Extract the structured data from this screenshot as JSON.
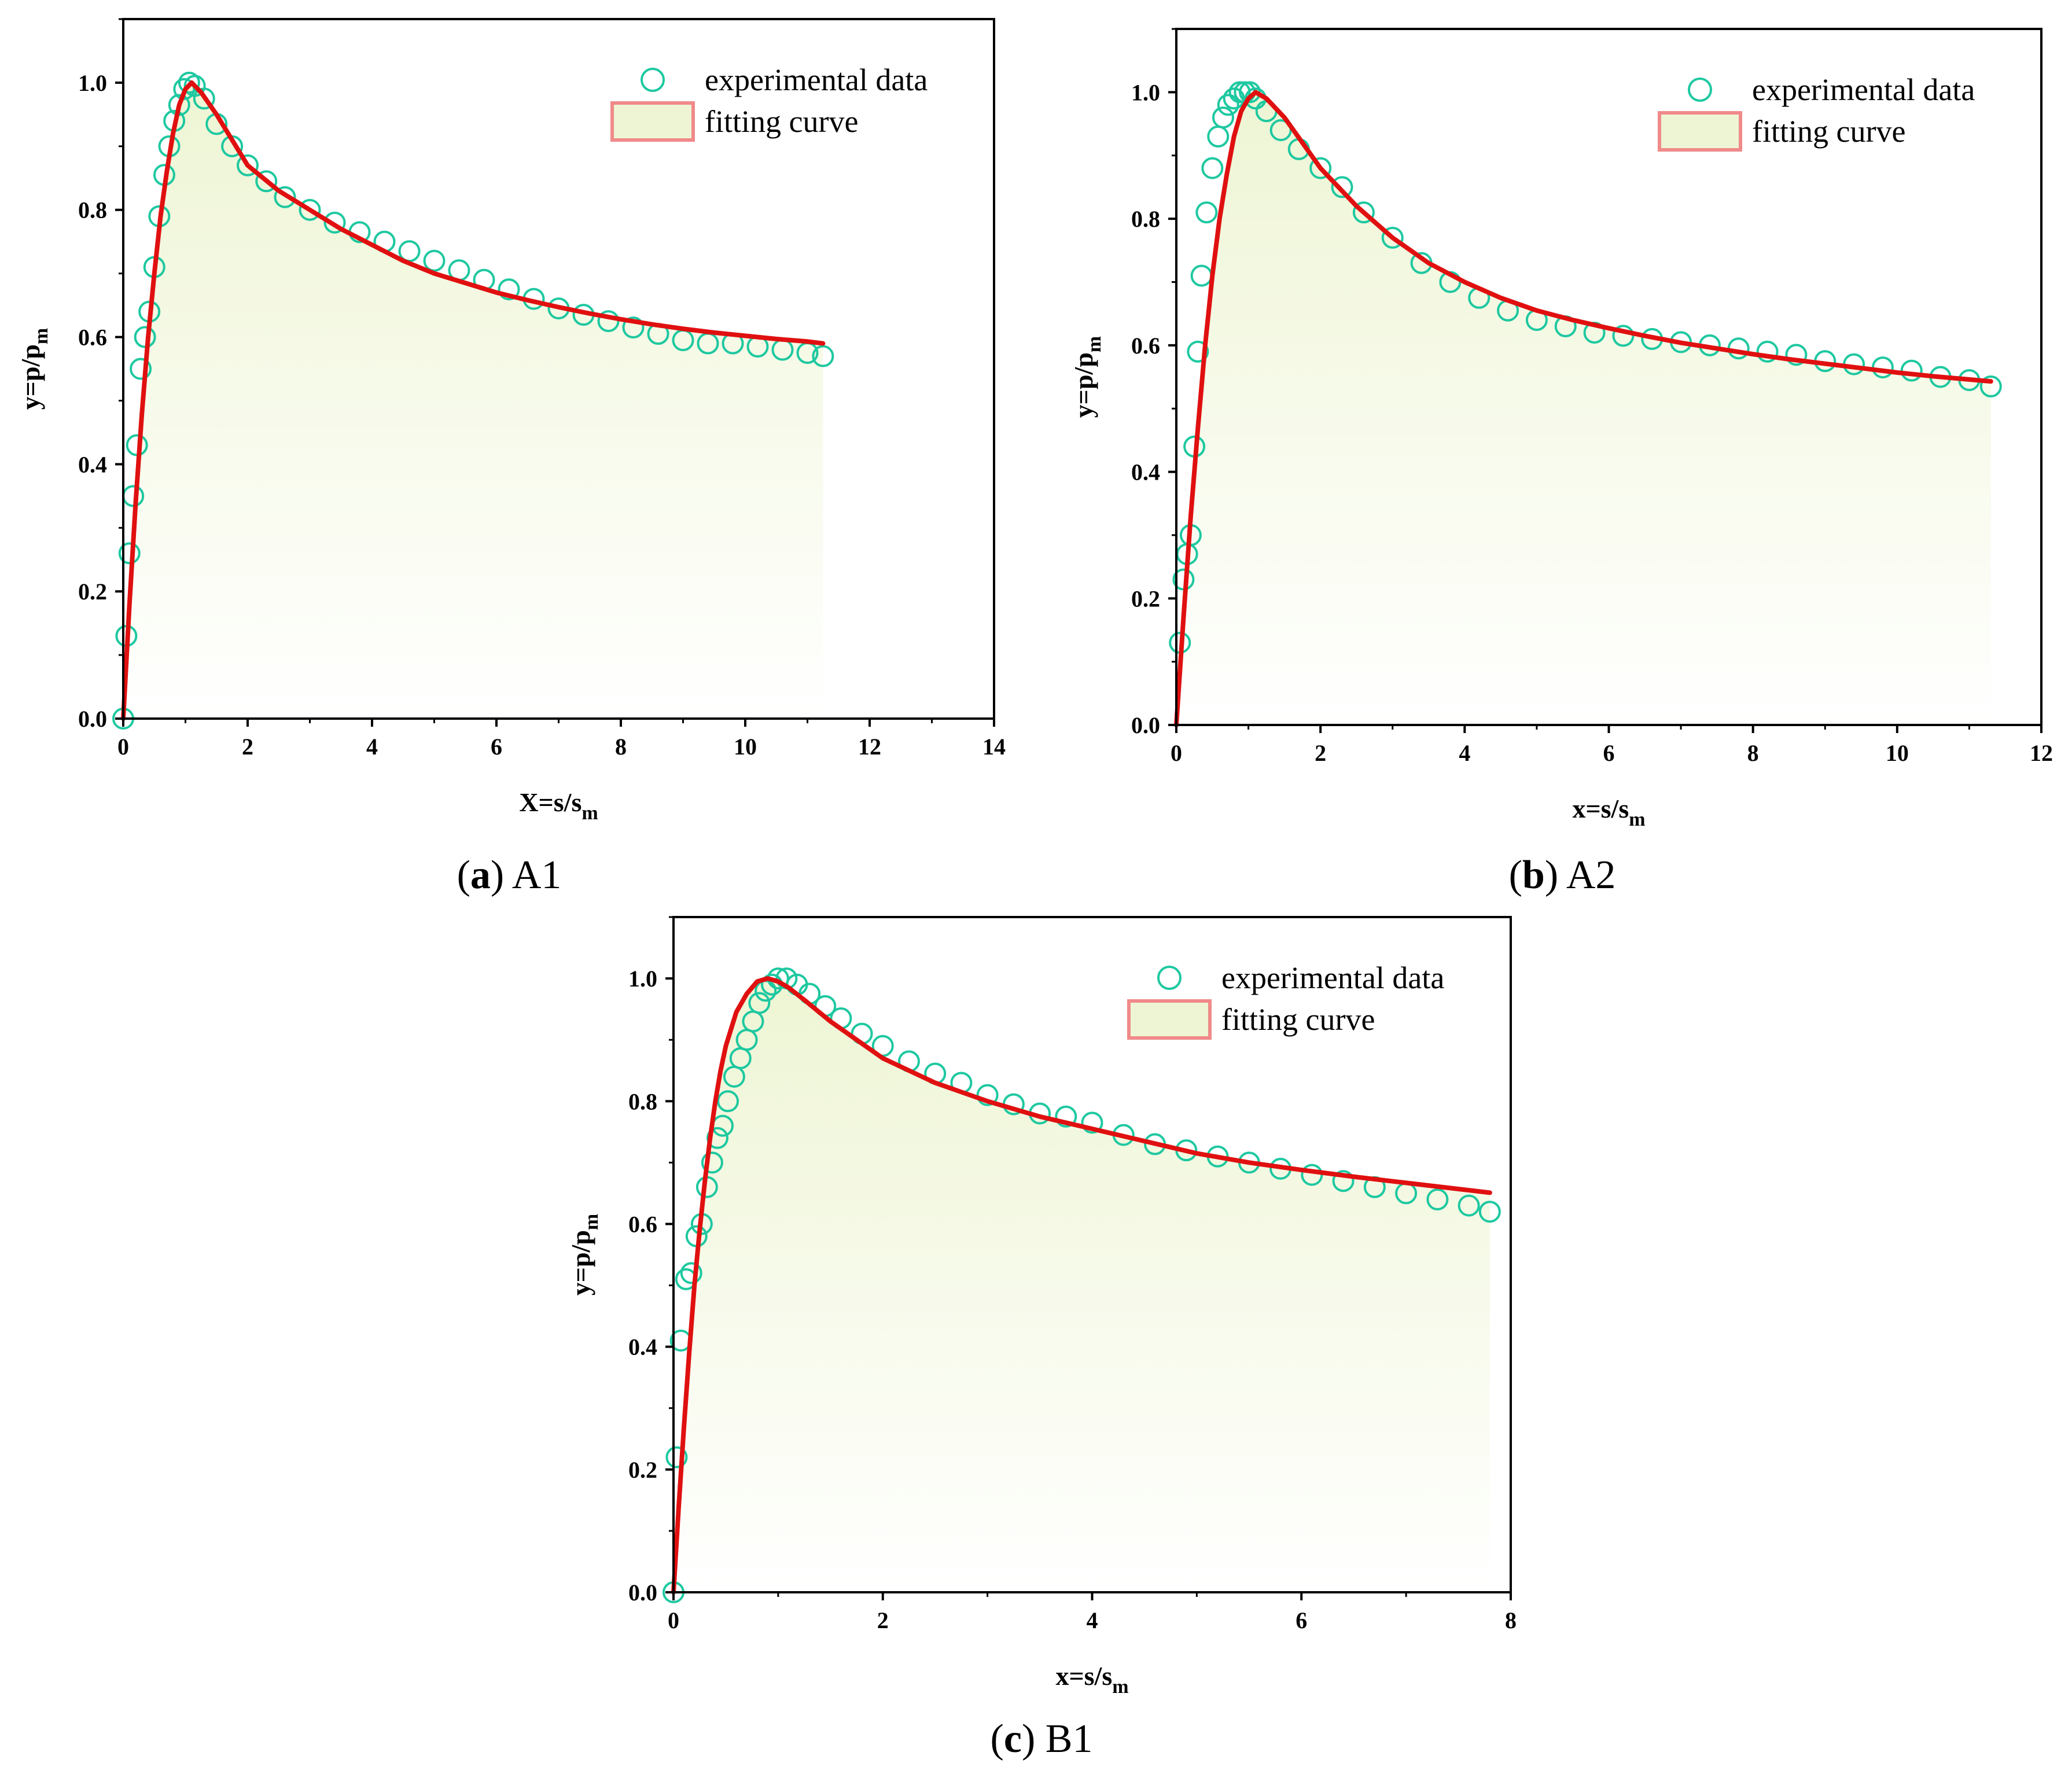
{
  "colors": {
    "marker": "#1ec8a0",
    "fit": "#e01010",
    "fill_top": "#eef5d4",
    "fill_bottom": "#ffffff",
    "legend_box": "#f08a8a",
    "axis": "#000000"
  },
  "chart_data": [
    {
      "id": "a",
      "type": "scatter",
      "caption_letter": "a",
      "caption_name": "A1",
      "xlabel_main": "X=s/s",
      "xlabel_sub": "m",
      "ylabel_main": "y=p/p",
      "ylabel_sub": "m",
      "xlim": [
        0,
        14
      ],
      "ylim": [
        0,
        1.1
      ],
      "xticks": [
        0,
        2,
        4,
        6,
        8,
        10,
        12,
        14
      ],
      "yticks": [
        0.0,
        0.2,
        0.4,
        0.6,
        0.8,
        1.0
      ],
      "xtick_labels": [
        "0",
        "2",
        "4",
        "6",
        "8",
        "10",
        "12",
        "14"
      ],
      "ytick_labels": [
        "0.0",
        "0.2",
        "0.4",
        "0.6",
        "0.8",
        "1.0"
      ],
      "legend": [
        "experimental data",
        "fitting curve"
      ],
      "legend_position": "top-right",
      "series": [
        {
          "name": "experimental data",
          "x": [
            0,
            0.05,
            0.1,
            0.16,
            0.22,
            0.28,
            0.35,
            0.42,
            0.5,
            0.58,
            0.66,
            0.74,
            0.82,
            0.9,
            0.98,
            1.06,
            1.15,
            1.3,
            1.5,
            1.75,
            2.0,
            2.3,
            2.6,
            3.0,
            3.4,
            3.8,
            4.2,
            4.6,
            5.0,
            5.4,
            5.8,
            6.2,
            6.6,
            7.0,
            7.4,
            7.8,
            8.2,
            8.6,
            9.0,
            9.4,
            9.8,
            10.2,
            10.6,
            11.0,
            11.25
          ],
          "y": [
            0.0,
            0.13,
            0.26,
            0.35,
            0.43,
            0.55,
            0.6,
            0.64,
            0.71,
            0.79,
            0.855,
            0.9,
            0.94,
            0.965,
            0.99,
            1.0,
            0.995,
            0.975,
            0.935,
            0.9,
            0.87,
            0.845,
            0.82,
            0.8,
            0.78,
            0.765,
            0.75,
            0.735,
            0.72,
            0.705,
            0.69,
            0.675,
            0.66,
            0.645,
            0.635,
            0.625,
            0.615,
            0.605,
            0.595,
            0.59,
            0.59,
            0.585,
            0.58,
            0.575,
            0.57
          ]
        },
        {
          "name": "fitting curve",
          "x": [
            0,
            0.1,
            0.2,
            0.3,
            0.4,
            0.5,
            0.6,
            0.7,
            0.8,
            0.9,
            1.0,
            1.1,
            1.25,
            1.5,
            1.75,
            2.0,
            2.5,
            3.0,
            3.5,
            4.0,
            4.5,
            5.0,
            5.5,
            6.0,
            6.5,
            7.0,
            7.5,
            8.0,
            8.5,
            9.0,
            9.5,
            10.0,
            10.5,
            11.0,
            11.25
          ],
          "y": [
            0.0,
            0.18,
            0.34,
            0.48,
            0.6,
            0.7,
            0.79,
            0.86,
            0.92,
            0.965,
            0.99,
            1.0,
            0.985,
            0.95,
            0.91,
            0.87,
            0.83,
            0.8,
            0.77,
            0.745,
            0.72,
            0.7,
            0.685,
            0.67,
            0.658,
            0.647,
            0.637,
            0.628,
            0.62,
            0.613,
            0.607,
            0.602,
            0.597,
            0.593,
            0.59
          ]
        }
      ]
    },
    {
      "id": "b",
      "type": "scatter",
      "caption_letter": "b",
      "caption_name": "A2",
      "xlabel_main": "x=s/s",
      "xlabel_sub": "m",
      "ylabel_main": "y=p/p",
      "ylabel_sub": "m",
      "xlim": [
        0,
        12
      ],
      "ylim": [
        0,
        1.1
      ],
      "xticks": [
        0,
        2,
        4,
        6,
        8,
        10,
        12
      ],
      "yticks": [
        0.0,
        0.2,
        0.4,
        0.6,
        0.8,
        1.0
      ],
      "xtick_labels": [
        "0",
        "2",
        "4",
        "6",
        "8",
        "10",
        "12"
      ],
      "ytick_labels": [
        "0.0",
        "0.2",
        "0.4",
        "0.6",
        "0.8",
        "1.0"
      ],
      "legend": [
        "experimental data",
        "fitting curve"
      ],
      "legend_position": "top-right",
      "series": [
        {
          "name": "experimental data",
          "x": [
            0.05,
            0.1,
            0.15,
            0.2,
            0.25,
            0.3,
            0.35,
            0.42,
            0.5,
            0.58,
            0.65,
            0.72,
            0.8,
            0.88,
            0.95,
            1.02,
            1.1,
            1.25,
            1.45,
            1.7,
            2.0,
            2.3,
            2.6,
            3.0,
            3.4,
            3.8,
            4.2,
            4.6,
            5.0,
            5.4,
            5.8,
            6.2,
            6.6,
            7.0,
            7.4,
            7.8,
            8.2,
            8.6,
            9.0,
            9.4,
            9.8,
            10.2,
            10.6,
            11.0,
            11.3
          ],
          "y": [
            0.13,
            0.23,
            0.27,
            0.3,
            0.44,
            0.59,
            0.71,
            0.81,
            0.88,
            0.93,
            0.96,
            0.98,
            0.99,
            1.0,
            1.0,
            1.0,
            0.99,
            0.97,
            0.94,
            0.91,
            0.88,
            0.85,
            0.81,
            0.77,
            0.73,
            0.7,
            0.675,
            0.655,
            0.64,
            0.63,
            0.62,
            0.615,
            0.61,
            0.605,
            0.6,
            0.595,
            0.59,
            0.585,
            0.575,
            0.57,
            0.565,
            0.56,
            0.55,
            0.545,
            0.535
          ]
        },
        {
          "name": "fitting curve",
          "x": [
            0,
            0.1,
            0.2,
            0.3,
            0.4,
            0.5,
            0.6,
            0.7,
            0.8,
            0.9,
            1.0,
            1.1,
            1.25,
            1.5,
            1.75,
            2.0,
            2.5,
            3.0,
            3.5,
            4.0,
            4.5,
            5.0,
            5.5,
            6.0,
            6.5,
            7.0,
            7.5,
            8.0,
            8.5,
            9.0,
            9.5,
            10.0,
            10.5,
            11.0,
            11.3
          ],
          "y": [
            0.0,
            0.17,
            0.33,
            0.47,
            0.6,
            0.71,
            0.8,
            0.87,
            0.93,
            0.97,
            0.99,
            1.0,
            0.99,
            0.96,
            0.92,
            0.88,
            0.82,
            0.77,
            0.73,
            0.7,
            0.675,
            0.655,
            0.64,
            0.627,
            0.615,
            0.604,
            0.595,
            0.586,
            0.578,
            0.571,
            0.564,
            0.557,
            0.551,
            0.546,
            0.543
          ]
        }
      ]
    },
    {
      "id": "c",
      "type": "scatter",
      "caption_letter": "c",
      "caption_name": "B1",
      "xlabel_main": "x=s/s",
      "xlabel_sub": "m",
      "ylabel_main": "y=p/p",
      "ylabel_sub": "m",
      "xlim": [
        0,
        8
      ],
      "ylim": [
        0,
        1.1
      ],
      "xticks": [
        0,
        2,
        4,
        6,
        8
      ],
      "yticks": [
        0.0,
        0.2,
        0.4,
        0.6,
        0.8,
        1.0
      ],
      "xtick_labels": [
        "0",
        "2",
        "4",
        "6",
        "8"
      ],
      "ytick_labels": [
        "0.0",
        "0.2",
        "0.4",
        "0.6",
        "0.8",
        "1.0"
      ],
      "legend": [
        "experimental data",
        "fitting curve"
      ],
      "legend_position": "top-right",
      "series": [
        {
          "name": "experimental data",
          "x": [
            0,
            0.03,
            0.07,
            0.12,
            0.17,
            0.22,
            0.27,
            0.32,
            0.37,
            0.42,
            0.47,
            0.52,
            0.58,
            0.64,
            0.7,
            0.76,
            0.82,
            0.88,
            0.94,
            1.0,
            1.08,
            1.18,
            1.3,
            1.45,
            1.6,
            1.8,
            2.0,
            2.25,
            2.5,
            2.75,
            3.0,
            3.25,
            3.5,
            3.75,
            4.0,
            4.3,
            4.6,
            4.9,
            5.2,
            5.5,
            5.8,
            6.1,
            6.4,
            6.7,
            7.0,
            7.3,
            7.6,
            7.8
          ],
          "y": [
            0.0,
            0.22,
            0.41,
            0.51,
            0.52,
            0.58,
            0.6,
            0.66,
            0.7,
            0.74,
            0.76,
            0.8,
            0.84,
            0.87,
            0.9,
            0.93,
            0.96,
            0.98,
            0.99,
            1.0,
            1.0,
            0.99,
            0.975,
            0.955,
            0.935,
            0.91,
            0.89,
            0.865,
            0.845,
            0.83,
            0.81,
            0.795,
            0.78,
            0.775,
            0.765,
            0.745,
            0.73,
            0.72,
            0.71,
            0.7,
            0.69,
            0.68,
            0.67,
            0.66,
            0.65,
            0.64,
            0.63,
            0.62
          ]
        },
        {
          "name": "fitting curve",
          "x": [
            0,
            0.05,
            0.1,
            0.15,
            0.2,
            0.25,
            0.3,
            0.35,
            0.4,
            0.45,
            0.5,
            0.6,
            0.7,
            0.8,
            0.9,
            1.0,
            1.1,
            1.25,
            1.5,
            1.75,
            2.0,
            2.5,
            3.0,
            3.5,
            4.0,
            4.5,
            5.0,
            5.5,
            6.0,
            6.5,
            7.0,
            7.5,
            7.8
          ],
          "y": [
            0.0,
            0.14,
            0.27,
            0.39,
            0.5,
            0.59,
            0.67,
            0.74,
            0.8,
            0.85,
            0.89,
            0.945,
            0.975,
            0.995,
            1.0,
            0.995,
            0.985,
            0.965,
            0.93,
            0.9,
            0.87,
            0.83,
            0.8,
            0.775,
            0.755,
            0.735,
            0.715,
            0.7,
            0.688,
            0.677,
            0.667,
            0.657,
            0.651
          ]
        }
      ]
    }
  ]
}
